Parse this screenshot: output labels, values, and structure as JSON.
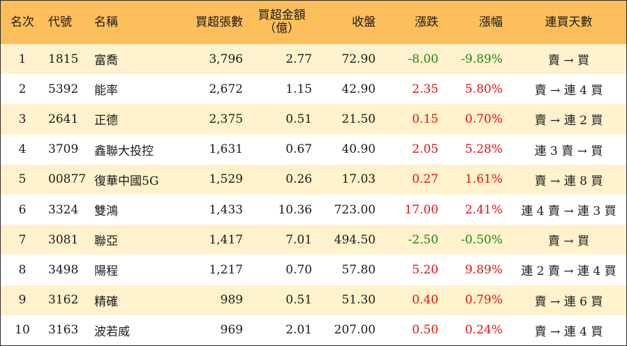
{
  "colors": {
    "header_bg": "#fdbf5b",
    "row_alt_bg": "#fff2cc",
    "up": "#ea0f0f",
    "down": "#1a8a1a"
  },
  "headers": {
    "rank": "名次",
    "code": "代號",
    "name": "名稱",
    "volume": "買超張數",
    "amount_line1": "買超金額",
    "amount_line2": "（億）",
    "close": "收盤",
    "change": "漲跌",
    "pct": "漲幅",
    "streak": "連買天數"
  },
  "rows": [
    {
      "rank": "1",
      "code": "1815",
      "name": "富喬",
      "volume": "3,796",
      "amount": "2.77",
      "close": "72.90",
      "change": "-8.00",
      "pct": "-9.89%",
      "dir": "down",
      "streak": "賣 → 買"
    },
    {
      "rank": "2",
      "code": "5392",
      "name": "能率",
      "volume": "2,672",
      "amount": "1.15",
      "close": "42.90",
      "change": "2.35",
      "pct": "5.80%",
      "dir": "up",
      "streak": "賣 → 連 4 買"
    },
    {
      "rank": "3",
      "code": "2641",
      "name": "正德",
      "volume": "2,375",
      "amount": "0.51",
      "close": "21.50",
      "change": "0.15",
      "pct": "0.70%",
      "dir": "up",
      "streak": "賣 → 連 2 買"
    },
    {
      "rank": "4",
      "code": "3709",
      "name": "鑫聯大投控",
      "volume": "1,631",
      "amount": "0.67",
      "close": "40.90",
      "change": "2.05",
      "pct": "5.28%",
      "dir": "up",
      "streak": "連 3 賣 → 買"
    },
    {
      "rank": "5",
      "code": "00877",
      "name": "復華中國5G",
      "volume": "1,529",
      "amount": "0.26",
      "close": "17.03",
      "change": "0.27",
      "pct": "1.61%",
      "dir": "up",
      "streak": "賣 → 連 8 買"
    },
    {
      "rank": "6",
      "code": "3324",
      "name": "雙鴻",
      "volume": "1,433",
      "amount": "10.36",
      "close": "723.00",
      "change": "17.00",
      "pct": "2.41%",
      "dir": "up",
      "streak": "連 4 賣 → 連 3 買"
    },
    {
      "rank": "7",
      "code": "3081",
      "name": "聯亞",
      "volume": "1,417",
      "amount": "7.01",
      "close": "494.50",
      "change": "-2.50",
      "pct": "-0.50%",
      "dir": "down",
      "streak": "賣 → 買"
    },
    {
      "rank": "8",
      "code": "3498",
      "name": "陽程",
      "volume": "1,217",
      "amount": "0.70",
      "close": "57.80",
      "change": "5.20",
      "pct": "9.89%",
      "dir": "up",
      "streak": "連 2 賣 → 連 4 買"
    },
    {
      "rank": "9",
      "code": "3162",
      "name": "精確",
      "volume": "989",
      "amount": "0.51",
      "close": "51.30",
      "change": "0.40",
      "pct": "0.79%",
      "dir": "up",
      "streak": "賣 → 連 6 買"
    },
    {
      "rank": "10",
      "code": "3163",
      "name": "波若威",
      "volume": "969",
      "amount": "2.01",
      "close": "207.00",
      "change": "0.50",
      "pct": "0.24%",
      "dir": "up",
      "streak": "賣 → 連 4 買"
    }
  ]
}
